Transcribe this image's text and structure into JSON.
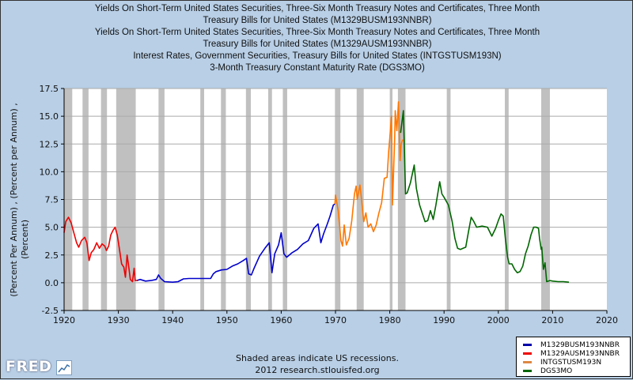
{
  "chart_data": {
    "type": "line",
    "title": [
      "Yields On Short-Term United States Securities, Three-Six Month Treasury Notes and Certificates, Three Month",
      "Treasury Bills for United States (M1329BUSM193NNBR)",
      "Yields On Short-Term United States Securities, Three-Six Month Treasury Notes and Certificates, Three Month",
      "Treasury Bills for United States (M1329AUSM193NNBR)",
      "Interest Rates, Government Securities, Treasury Bills for United States (INTGSTUSM193N)",
      "3-Month Treasury Constant Maturity Rate (DGS3MO)"
    ],
    "ylabel": [
      "(Percent Per Annum) , (Percent per Annum) ,",
      "(Percent)"
    ],
    "xlabel": "",
    "xlim": [
      1920,
      2020
    ],
    "ylim": [
      -2.5,
      17.5
    ],
    "xticks": [
      "1920",
      "1930",
      "1940",
      "1950",
      "1960",
      "1970",
      "1980",
      "1990",
      "2000",
      "2010",
      "2020"
    ],
    "yticks": [
      "-2.5",
      "0.0",
      "2.5",
      "5.0",
      "7.5",
      "10.0",
      "12.5",
      "15.0",
      "17.5"
    ],
    "grid": "horizontal",
    "legend_position": "bottom-right",
    "recessions": [
      [
        1920.0,
        1921.5
      ],
      [
        1923.4,
        1924.5
      ],
      [
        1926.8,
        1927.9
      ],
      [
        1929.6,
        1933.2
      ],
      [
        1937.4,
        1938.5
      ],
      [
        1945.1,
        1945.8
      ],
      [
        1948.9,
        1949.8
      ],
      [
        1953.5,
        1954.4
      ],
      [
        1957.6,
        1958.3
      ],
      [
        1960.3,
        1961.1
      ],
      [
        1969.9,
        1970.9
      ],
      [
        1973.9,
        1975.2
      ],
      [
        1980.0,
        1980.5
      ],
      [
        1981.5,
        1982.9
      ],
      [
        1990.5,
        1991.2
      ],
      [
        2001.2,
        2001.9
      ],
      [
        2007.9,
        2009.5
      ]
    ],
    "series": [
      {
        "name": "M1329BUSM193NNBR",
        "color": "#0000cc",
        "x": [
          1933.4,
          1934,
          1935,
          1936,
          1937,
          1937.4,
          1937.8,
          1938.5,
          1940,
          1941,
          1942,
          1943,
          1946,
          1947,
          1947.5,
          1948,
          1949,
          1950,
          1951,
          1952,
          1953,
          1953.6,
          1954,
          1954.5,
          1955,
          1956,
          1957,
          1957.8,
          1958.3,
          1958.8,
          1959.5,
          1960,
          1960.5,
          1961,
          1962,
          1963,
          1964,
          1965,
          1966,
          1966.8,
          1967.3,
          1967.8,
          1968.5,
          1969,
          1969.6,
          1969.9
        ],
        "y": [
          0.2,
          0.3,
          0.15,
          0.2,
          0.3,
          0.7,
          0.4,
          0.1,
          0.05,
          0.1,
          0.35,
          0.38,
          0.38,
          0.38,
          0.8,
          1.0,
          1.15,
          1.2,
          1.5,
          1.7,
          2.0,
          2.2,
          0.8,
          0.7,
          1.3,
          2.4,
          3.1,
          3.6,
          0.9,
          2.6,
          3.4,
          4.5,
          2.6,
          2.3,
          2.7,
          3.0,
          3.5,
          3.8,
          4.9,
          5.3,
          3.6,
          4.4,
          5.3,
          6.0,
          7.0,
          7.1
        ]
      },
      {
        "name": "M1329AUSM193NNBR",
        "color": "#ee0000",
        "x": [
          1920,
          1920.3,
          1920.8,
          1921.3,
          1921.8,
          1922.3,
          1922.7,
          1923.2,
          1923.8,
          1924.2,
          1924.6,
          1925,
          1925.5,
          1926,
          1926.5,
          1927,
          1927.5,
          1927.8,
          1928.2,
          1928.6,
          1929,
          1929.4,
          1929.8,
          1930.2,
          1930.6,
          1931,
          1931.3,
          1931.6,
          1931.9,
          1932.2,
          1932.6,
          1932.9,
          1933.1,
          1933.4
        ],
        "y": [
          4.5,
          5.5,
          5.9,
          5.4,
          4.5,
          3.6,
          3.2,
          3.8,
          4.1,
          3.6,
          2.0,
          2.7,
          3.0,
          3.6,
          3.1,
          3.5,
          3.3,
          2.9,
          3.3,
          4.3,
          4.7,
          5.0,
          4.3,
          3.0,
          1.7,
          1.4,
          0.5,
          2.5,
          1.5,
          0.3,
          0.1,
          1.3,
          0.2,
          0.2
        ]
      },
      {
        "name": "INTGSTUSM193N",
        "color": "#ff7700",
        "x": [
          1969.9,
          1970,
          1970.5,
          1971,
          1971.3,
          1971.6,
          1972,
          1972.5,
          1973,
          1973.5,
          1973.8,
          1974,
          1974.5,
          1974.8,
          1975.2,
          1975.6,
          1976,
          1976.5,
          1977,
          1977.5,
          1978,
          1978.5,
          1979,
          1979.5,
          1979.8,
          1980,
          1980.3,
          1980.5,
          1980.9,
          1981,
          1981.3,
          1981.6,
          1981.9,
          1982.1,
          1982.4
        ],
        "y": [
          7.1,
          7.9,
          6.5,
          3.8,
          3.3,
          5.2,
          3.4,
          4.0,
          5.6,
          8.0,
          8.7,
          7.5,
          8.8,
          7.5,
          5.5,
          6.3,
          5.0,
          5.3,
          4.6,
          5.2,
          6.3,
          7.2,
          9.4,
          9.5,
          11.8,
          13.0,
          15.0,
          7.0,
          13.0,
          15.5,
          13.7,
          16.3,
          11.0,
          12.5,
          12.9
        ]
      },
      {
        "name": "DGS3MO",
        "color": "#006600",
        "x": [
          1982.0,
          1982.5,
          1982.7,
          1982.9,
          1983.2,
          1983.8,
          1984.5,
          1984.9,
          1985.5,
          1986.5,
          1987,
          1987.5,
          1988,
          1988.5,
          1989.2,
          1989.6,
          1990,
          1990.8,
          1991.5,
          1992,
          1992.5,
          1993,
          1993.5,
          1994,
          1994.5,
          1995,
          1995.5,
          1996,
          1997,
          1998,
          1998.8,
          1999.5,
          2000,
          2000.5,
          2000.9,
          2001.3,
          2001.7,
          2002,
          2002.5,
          2003,
          2003.5,
          2004,
          2004.5,
          2005,
          2005.5,
          2006,
          2006.5,
          2007,
          2007.4,
          2007.6,
          2007.9,
          2008,
          2008.3,
          2008.6,
          2008.9,
          2009.5,
          2010,
          2011,
          2012,
          2013
        ],
        "y": [
          13.5,
          15.5,
          12.0,
          8.0,
          8.1,
          9.0,
          10.6,
          8.5,
          7.0,
          5.5,
          5.6,
          6.5,
          5.7,
          7.0,
          9.1,
          8.0,
          7.7,
          7.0,
          5.5,
          4.0,
          3.1,
          3.0,
          3.1,
          3.2,
          4.6,
          5.9,
          5.5,
          5.0,
          5.1,
          5.0,
          4.2,
          4.9,
          5.6,
          6.2,
          6.0,
          4.0,
          2.3,
          1.7,
          1.7,
          1.2,
          0.9,
          1.0,
          1.5,
          2.6,
          3.3,
          4.3,
          5.0,
          5.0,
          4.9,
          4.0,
          3.0,
          3.2,
          1.2,
          1.8,
          0.1,
          0.2,
          0.15,
          0.1,
          0.1,
          0.05
        ]
      }
    ]
  },
  "footer": {
    "line1": "Shaded areas indicate US recessions.",
    "line2": "2012 research.stlouisfed.org"
  },
  "logo": "FRED"
}
